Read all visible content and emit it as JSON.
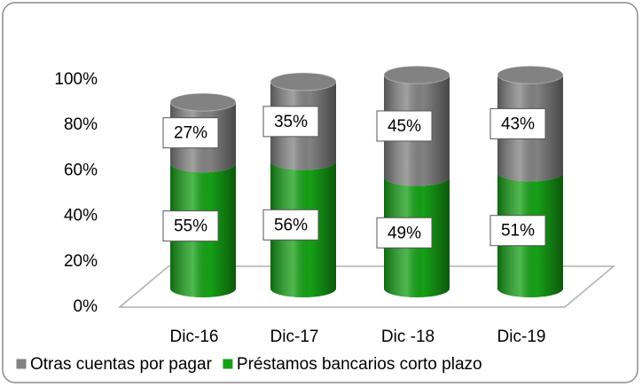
{
  "chart_data": {
    "type": "bar3d_stacked",
    "categories": [
      "Dic-16",
      "Dic-17",
      "Dic -18",
      "Dic-19"
    ],
    "series": [
      {
        "name": "Préstamos bancarios corto plazo",
        "color": "#16a016",
        "values": [
          55,
          56,
          49,
          51
        ],
        "value_labels": [
          "55%",
          "56%",
          "49%",
          "51%"
        ]
      },
      {
        "name": "Otras cuentas por pagar",
        "color": "#828282",
        "values": [
          27,
          35,
          45,
          43
        ],
        "value_labels": [
          "27%",
          "35%",
          "45%",
          "43%"
        ]
      }
    ],
    "ylim": [
      0,
      100
    ],
    "yticks": [
      {
        "value": 0,
        "label": "0%"
      },
      {
        "value": 20,
        "label": "20%"
      },
      {
        "value": 40,
        "label": "40%"
      },
      {
        "value": 60,
        "label": "60%"
      },
      {
        "value": 80,
        "label": "80%"
      },
      {
        "value": 100,
        "label": "100%"
      }
    ],
    "legend": "bottom"
  }
}
